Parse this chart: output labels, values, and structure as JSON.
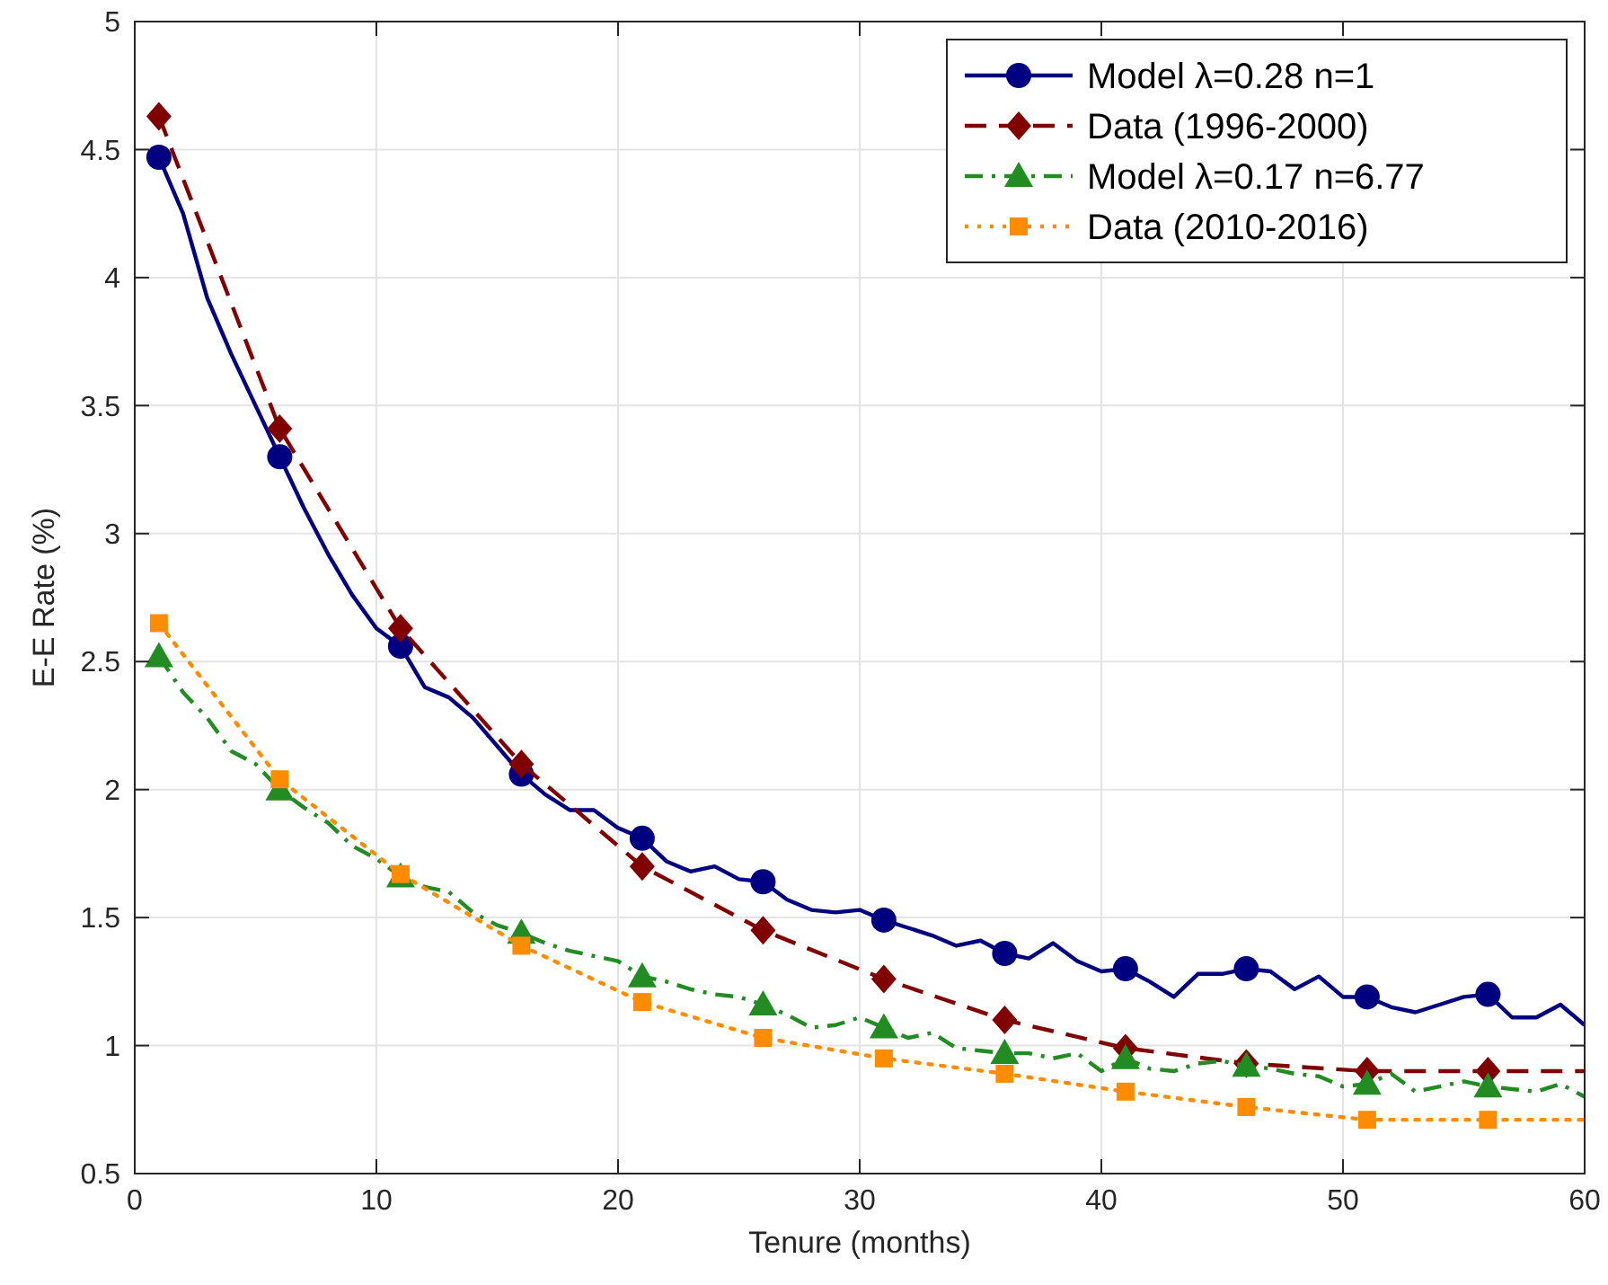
{
  "chart_data": {
    "type": "line",
    "xlabel": "Tenure (months)",
    "ylabel": "E-E Rate (%)",
    "xlim": [
      0,
      60
    ],
    "xticks": [
      0,
      10,
      20,
      30,
      40,
      50,
      60
    ],
    "ylim": [
      0.5,
      5
    ],
    "yticks": [
      0.5,
      1,
      1.5,
      2,
      2.5,
      3,
      3.5,
      4,
      4.5,
      5
    ],
    "grid": true,
    "legend": "top right",
    "series": [
      {
        "color": "#000080",
        "marker": "none",
        "line_style": "solid",
        "x": [
          1,
          2,
          3,
          4,
          5,
          6,
          7,
          8,
          9,
          10,
          11,
          12,
          13,
          14,
          15,
          16,
          17,
          18,
          19,
          20,
          21,
          22,
          23,
          24,
          25,
          26,
          27,
          28,
          29,
          30,
          31,
          32,
          33,
          34,
          35,
          36,
          37,
          38,
          39,
          40,
          41,
          42,
          43,
          44,
          45,
          46,
          47,
          48,
          49,
          50,
          51,
          52,
          53,
          54,
          55,
          56,
          57,
          58,
          59,
          60
        ],
        "values": [
          4.47,
          4.25,
          3.92,
          3.7,
          3.5,
          3.3,
          3.1,
          2.92,
          2.76,
          2.63,
          2.56,
          2.4,
          2.36,
          2.28,
          2.17,
          2.06,
          1.98,
          1.92,
          1.92,
          1.85,
          1.81,
          1.72,
          1.68,
          1.7,
          1.65,
          1.64,
          1.57,
          1.53,
          1.52,
          1.53,
          1.49,
          1.46,
          1.43,
          1.39,
          1.41,
          1.36,
          1.34,
          1.4,
          1.33,
          1.29,
          1.3,
          1.25,
          1.19,
          1.28,
          1.28,
          1.3,
          1.29,
          1.22,
          1.27,
          1.19,
          1.19,
          1.15,
          1.13,
          1.16,
          1.19,
          1.2,
          1.11,
          1.11,
          1.16,
          1.08
        ]
      },
      {
        "type": "scatter",
        "name": "Model  λ=0.28 n=1",
        "color": "#000080",
        "marker": "circle",
        "line_style": "solid",
        "x": [
          1,
          6,
          11,
          16,
          21,
          26,
          31,
          36,
          41,
          46,
          51,
          56
        ],
        "values": [
          4.47,
          3.3,
          2.56,
          2.06,
          1.81,
          1.64,
          1.49,
          1.36,
          1.3,
          1.3,
          1.19,
          1.2
        ]
      },
      {
        "color": "#800000",
        "marker": "none",
        "line_style": "dashed",
        "x": [
          1,
          6,
          11,
          16,
          21,
          26,
          31,
          36,
          41,
          46,
          51,
          56,
          60
        ],
        "values": [
          4.63,
          3.41,
          2.63,
          2.1,
          1.7,
          1.45,
          1.26,
          1.1,
          0.99,
          0.93,
          0.9,
          0.9,
          0.9
        ]
      },
      {
        "type": "scatter",
        "name": "Data (1996-2000)",
        "color": "#800000",
        "marker": "diamond",
        "line_style": "dashed",
        "x": [
          1,
          6,
          11,
          16,
          21,
          26,
          31,
          36,
          41,
          46,
          51,
          56
        ],
        "values": [
          4.63,
          3.41,
          2.63,
          2.1,
          1.7,
          1.45,
          1.26,
          1.1,
          0.99,
          0.93,
          0.9,
          0.9
        ]
      },
      {
        "color": "#228b22",
        "marker": "none",
        "line_style": "dashdot",
        "x": [
          1,
          2,
          3,
          4,
          5,
          6,
          7,
          8,
          9,
          10,
          11,
          12,
          13,
          14,
          15,
          16,
          17,
          18,
          19,
          20,
          21,
          22,
          23,
          24,
          25,
          26,
          27,
          28,
          29,
          30,
          31,
          32,
          33,
          34,
          35,
          36,
          37,
          38,
          39,
          40,
          41,
          42,
          43,
          44,
          45,
          46,
          47,
          48,
          49,
          50,
          51,
          52,
          53,
          54,
          55,
          56,
          57,
          58,
          59,
          60
        ],
        "values": [
          2.52,
          2.38,
          2.28,
          2.15,
          2.1,
          2.0,
          1.93,
          1.87,
          1.78,
          1.73,
          1.66,
          1.62,
          1.6,
          1.52,
          1.47,
          1.44,
          1.4,
          1.37,
          1.35,
          1.33,
          1.27,
          1.25,
          1.22,
          1.2,
          1.19,
          1.16,
          1.12,
          1.07,
          1.08,
          1.11,
          1.07,
          1.03,
          1.05,
          0.99,
          0.98,
          0.97,
          0.97,
          0.95,
          0.97,
          0.9,
          0.95,
          0.91,
          0.9,
          0.93,
          0.94,
          0.92,
          0.91,
          0.89,
          0.88,
          0.84,
          0.85,
          0.89,
          0.82,
          0.84,
          0.86,
          0.84,
          0.83,
          0.82,
          0.85,
          0.8
        ]
      },
      {
        "type": "scatter",
        "name": "Model  λ=0.17 n=6.77",
        "color": "#228b22",
        "marker": "triangle",
        "line_style": "dashdot",
        "x": [
          1,
          6,
          11,
          16,
          21,
          26,
          31,
          36,
          41,
          46,
          51,
          56
        ],
        "values": [
          2.52,
          2.0,
          1.66,
          1.44,
          1.27,
          1.16,
          1.07,
          0.97,
          0.95,
          0.92,
          0.85,
          0.84
        ]
      },
      {
        "color": "#ff8c00",
        "marker": "none",
        "line_style": "dotted",
        "x": [
          1,
          6,
          11,
          16,
          21,
          26,
          31,
          36,
          41,
          46,
          51,
          56,
          60
        ],
        "values": [
          2.65,
          2.04,
          1.67,
          1.39,
          1.17,
          1.03,
          0.95,
          0.89,
          0.82,
          0.76,
          0.71,
          0.71,
          0.71
        ]
      },
      {
        "type": "scatter",
        "name": "Data (2010-2016)",
        "color": "#ff8c00",
        "marker": "square",
        "line_style": "dotted",
        "x": [
          1,
          6,
          11,
          16,
          21,
          26,
          31,
          36,
          41,
          46,
          51,
          56
        ],
        "values": [
          2.65,
          2.04,
          1.67,
          1.39,
          1.17,
          1.03,
          0.95,
          0.89,
          0.82,
          0.76,
          0.71,
          0.71
        ]
      }
    ]
  }
}
